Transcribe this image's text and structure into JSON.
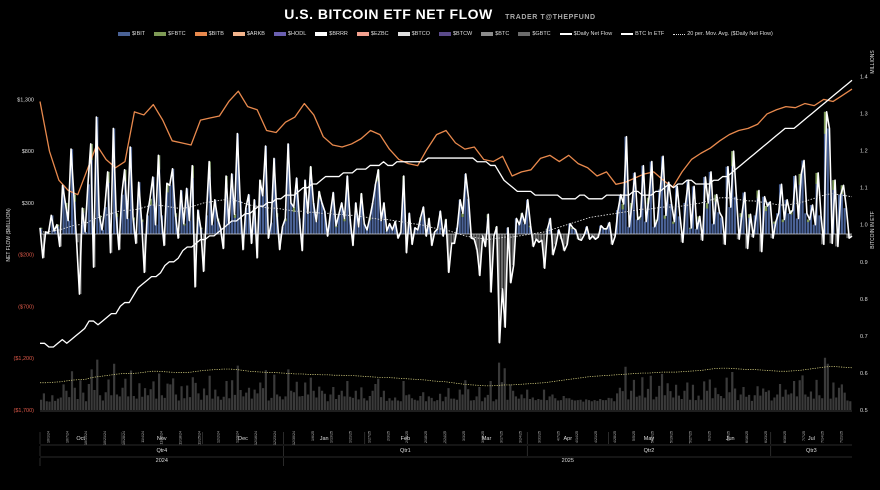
{
  "title": "U.S. BITCOIN ETF NET FLOW",
  "subtitle": "TRADER T@THEPFUND",
  "legend": [
    {
      "label": "$IBIT",
      "color": "#4a6296",
      "kind": "box"
    },
    {
      "label": "$FBTC",
      "color": "#7e9a55",
      "kind": "box"
    },
    {
      "label": "$BITB",
      "color": "#e8894d",
      "kind": "box"
    },
    {
      "label": "$ARKB",
      "color": "#f3b48c",
      "kind": "box"
    },
    {
      "label": "$HODL",
      "color": "#6a5fb0",
      "kind": "box"
    },
    {
      "label": "$BRRR",
      "color": "#ffffff",
      "kind": "box"
    },
    {
      "label": "$EZBC",
      "color": "#f2a08e",
      "kind": "box"
    },
    {
      "label": "$BTCO",
      "color": "#e0e0e0",
      "kind": "box"
    },
    {
      "label": "$BTCW",
      "color": "#5a4a8a",
      "kind": "box"
    },
    {
      "label": "$BTC",
      "color": "#8c8c8c",
      "kind": "box"
    },
    {
      "label": "$GBTC",
      "color": "#6b6b6b",
      "kind": "box"
    },
    {
      "label": "$Daily Net Flow",
      "color": "#ffffff",
      "kind": "line"
    },
    {
      "label": "BTC In ETF",
      "color": "#ffffff",
      "kind": "line"
    },
    {
      "label": "20 per. Mov. Avg. ($Daily Net Flow)",
      "color": "#dddddd",
      "kind": "dot"
    }
  ],
  "chart_data": {
    "type": "bar",
    "title": "U.S. BITCOIN ETF NET FLOW",
    "ylabel_left": "NET FLOW ($MILLION)",
    "ylabel_right": "BITCOIN IN ETF",
    "right_units": "MILLIONS",
    "left_ticks": [
      "$1,300",
      "$800",
      "$300",
      "($200)",
      "($700)",
      "($1,200)",
      "($1,700)"
    ],
    "left_tick_values": [
      1300,
      800,
      300,
      -200,
      -700,
      -1200,
      -1700
    ],
    "right_ticks": [
      "1.4",
      "1.3",
      "1.2",
      "1.1",
      "1.0",
      "0.9",
      "0.8",
      "0.7",
      "0.6",
      "0.5"
    ],
    "right_tick_values": [
      1.4,
      1.3,
      1.2,
      1.1,
      1.0,
      0.9,
      0.8,
      0.7,
      0.6,
      0.5
    ],
    "ylim_left": [
      -1700,
      1700
    ],
    "ylim_right": [
      0.5,
      1.45
    ],
    "months": [
      "Oct",
      "Nov",
      "Dec",
      "Jan",
      "Feb",
      "Mar",
      "Apr",
      "May",
      "Jun",
      "Jul"
    ],
    "quarters": [
      "Qtr4",
      "Qtr1",
      "Qtr2",
      "Qtr3"
    ],
    "years": [
      "2024",
      "2025"
    ],
    "date_labels": [
      "10/1/24",
      "10/7/24",
      "10/14/24",
      "10/21/24",
      "10/28/24",
      "11/4/24",
      "11/11/24",
      "11/18/24",
      "11/25/24",
      "12/2/24",
      "12/9/24",
      "12/16/24",
      "12/23/24",
      "12/30/24",
      "1/6/25",
      "1/13/25",
      "1/21/25",
      "1/27/25",
      "2/3/25",
      "2/10/25",
      "2/18/25",
      "2/24/25",
      "3/3/25",
      "3/10/25",
      "3/17/25",
      "3/24/25",
      "3/31/25",
      "4/7/25",
      "4/14/25",
      "4/21/25",
      "4/28/25",
      "5/5/25",
      "5/12/25",
      "5/19/25",
      "5/27/25",
      "6/2/25",
      "6/9/25",
      "6/16/25",
      "6/23/25",
      "6/30/25",
      "7/7/25",
      "7/14/25",
      "7/21/25"
    ],
    "daily_net_flow": [
      60,
      -230,
      20,
      10,
      180,
      30,
      90,
      -120,
      470,
      300,
      130,
      820,
      380,
      -80,
      -580,
      250,
      20,
      480,
      870,
      -320,
      1130,
      180,
      40,
      260,
      600,
      -180,
      1020,
      200,
      -150,
      380,
      620,
      150,
      840,
      160,
      -90,
      500,
      140,
      -370,
      180,
      340,
      550,
      90,
      760,
      180,
      -110,
      490,
      470,
      630,
      200,
      -40,
      420,
      100,
      440,
      130,
      660,
      -510,
      230,
      60,
      -360,
      180,
      700,
      90,
      330,
      150,
      60,
      -140,
      560,
      100,
      580,
      190,
      970,
      320,
      -150,
      250,
      380,
      -90,
      330,
      -230,
      520,
      370,
      850,
      -40,
      110,
      730,
      200,
      -150,
      70,
      150,
      870,
      300,
      260,
      540,
      150,
      -160,
      520,
      200,
      650,
      300,
      120,
      410,
      300,
      220,
      -20,
      200,
      400,
      80,
      190,
      300,
      150,
      560,
      140,
      -110,
      300,
      70,
      390,
      100,
      40,
      160,
      300,
      480,
      620,
      130,
      300,
      30,
      100,
      40,
      120,
      -40,
      20,
      560,
      -180,
      200,
      -100,
      60,
      40,
      160,
      260,
      -20,
      150,
      -110,
      20,
      50,
      220,
      -20,
      140,
      -370,
      -90,
      -90,
      60,
      330,
      200,
      580,
      340,
      -40,
      -50,
      -150,
      -400,
      -20,
      -120,
      190,
      -560,
      -20,
      70,
      -1050,
      -530,
      -900,
      60,
      -470,
      -300,
      150,
      90,
      200,
      100,
      330,
      80,
      -120,
      -50,
      -80,
      -60,
      -330,
      50,
      150,
      -200,
      -100,
      40,
      -50,
      -160,
      -100,
      100,
      60,
      40,
      -50,
      -60,
      -10,
      70,
      -50,
      -20,
      -50,
      -30,
      80,
      50,
      50,
      110,
      -100,
      -20,
      230,
      380,
      290,
      940,
      70,
      300,
      590,
      140,
      170,
      660,
      120,
      350,
      700,
      70,
      140,
      430,
      750,
      180,
      500,
      290,
      120,
      460,
      170,
      -80,
      300,
      520,
      60,
      460,
      50,
      170,
      -60,
      550,
      300,
      600,
      100,
      380,
      210,
      160,
      -100,
      650,
      260,
      800,
      360,
      -50,
      200,
      400,
      -140,
      190,
      -30,
      180,
      420,
      -170,
      360,
      270,
      310,
      -40,
      120,
      200,
      480,
      140,
      330,
      200,
      230,
      560,
      150,
      580,
      710,
      200,
      140,
      280,
      90,
      590,
      180,
      -100,
      1180,
      1020,
      -90,
      520,
      -120,
      380,
      470,
      250,
      -40,
      -20
    ],
    "btc_in_etf": [
      0.68,
      0.68,
      0.67,
      0.67,
      0.68,
      0.69,
      0.68,
      0.69,
      0.7,
      0.71,
      0.72,
      0.74,
      0.74,
      0.73,
      0.74,
      0.75,
      0.76,
      0.76,
      0.78,
      0.79,
      0.79,
      0.81,
      0.83,
      0.84,
      0.85,
      0.86,
      0.86,
      0.87,
      0.89,
      0.9,
      0.9,
      0.91,
      0.93,
      0.94,
      0.94,
      0.95,
      0.96,
      0.96,
      0.97,
      0.97,
      0.98,
      0.99,
      1.0,
      1.01,
      1.01,
      1.02,
      1.03,
      1.03,
      1.04,
      1.05,
      1.05,
      1.06,
      1.06,
      1.07,
      1.07,
      1.08,
      1.08,
      1.08,
      1.09,
      1.1,
      1.1,
      1.11,
      1.11,
      1.12,
      1.13,
      1.13,
      1.13,
      1.13,
      1.14,
      1.14,
      1.14,
      1.15,
      1.15,
      1.15,
      1.16,
      1.16,
      1.16,
      1.17,
      1.16,
      1.16,
      1.17,
      1.17,
      1.17,
      1.17,
      1.17,
      1.17,
      1.17,
      1.18,
      1.18,
      1.18,
      1.18,
      1.18,
      1.18,
      1.18,
      1.18,
      1.18,
      1.18,
      1.18,
      1.17,
      1.17,
      1.17,
      1.16,
      1.16,
      1.14,
      1.12,
      1.11,
      1.1,
      1.09,
      1.09,
      1.09,
      1.09,
      1.08,
      1.08,
      1.08,
      1.08,
      1.08,
      1.08,
      1.07,
      1.07,
      1.07,
      1.07,
      1.08,
      1.08,
      1.07,
      1.07,
      1.07,
      1.07,
      1.08,
      1.08,
      1.08,
      1.08,
      1.08,
      1.08,
      1.09,
      1.09,
      1.08,
      1.08,
      1.08,
      1.09,
      1.09,
      1.1,
      1.11,
      1.1,
      1.11,
      1.11,
      1.12,
      1.12,
      1.11,
      1.11,
      1.11,
      1.11,
      1.12,
      1.12,
      1.13,
      1.13,
      1.14,
      1.15,
      1.16,
      1.17,
      1.18,
      1.19,
      1.2,
      1.21,
      1.22,
      1.23,
      1.24,
      1.25,
      1.26,
      1.26,
      1.26,
      1.27,
      1.28,
      1.29,
      1.3,
      1.31,
      1.32,
      1.33,
      1.34,
      1.35,
      1.36,
      1.37,
      1.38,
      1.39
    ],
    "ma20": [
      20,
      20,
      30,
      40,
      60,
      80,
      90,
      100,
      140,
      160,
      180,
      200,
      220,
      230,
      230,
      240,
      260,
      280,
      280,
      270,
      260,
      250,
      250,
      260,
      280,
      300,
      310,
      320,
      330,
      330,
      320,
      300,
      280,
      270,
      260,
      250,
      250,
      240,
      230,
      220,
      220,
      210,
      210,
      200,
      200,
      190,
      190,
      180,
      180,
      170,
      160,
      150,
      140,
      140,
      130,
      120,
      110,
      100,
      90,
      80,
      60,
      50,
      40,
      20,
      0,
      -20,
      -30,
      -40,
      -50,
      -50,
      -40,
      -30,
      -30,
      -20,
      -10,
      0,
      10,
      20,
      40,
      60,
      80,
      100,
      120,
      140,
      160,
      170,
      180,
      190,
      200,
      210,
      220,
      230,
      240,
      240,
      250,
      260,
      260,
      260,
      270,
      280,
      290,
      300,
      320,
      340,
      350,
      350,
      340,
      330,
      320,
      320,
      310,
      300,
      290,
      280,
      280,
      290,
      300,
      320,
      340,
      360,
      380,
      390,
      380,
      370,
      360
    ],
    "btc_rolling_price_line": [
      1280,
      800,
      520,
      420,
      380,
      620,
      860,
      720,
      640,
      700,
      1180,
      1150,
      1250,
      1100,
      900,
      880,
      860,
      1100,
      1120,
      1140,
      1280,
      1380,
      1230,
      1200,
      1000,
      980,
      1080,
      1130,
      1260,
      1150,
      940,
      860,
      840,
      870,
      920,
      1000,
      960,
      820,
      720,
      680,
      660,
      820,
      960,
      1000,
      880,
      820,
      840,
      720,
      700,
      750,
      560,
      600,
      620,
      730,
      760,
      700,
      760,
      680,
      640,
      560,
      600,
      480,
      500,
      540,
      580,
      600,
      520,
      450,
      600,
      720,
      780,
      830,
      900,
      960,
      1000,
      1020,
      1060,
      1160,
      1200,
      1230,
      1220,
      1260,
      1240,
      1300,
      1280,
      1340,
      1400
    ]
  }
}
